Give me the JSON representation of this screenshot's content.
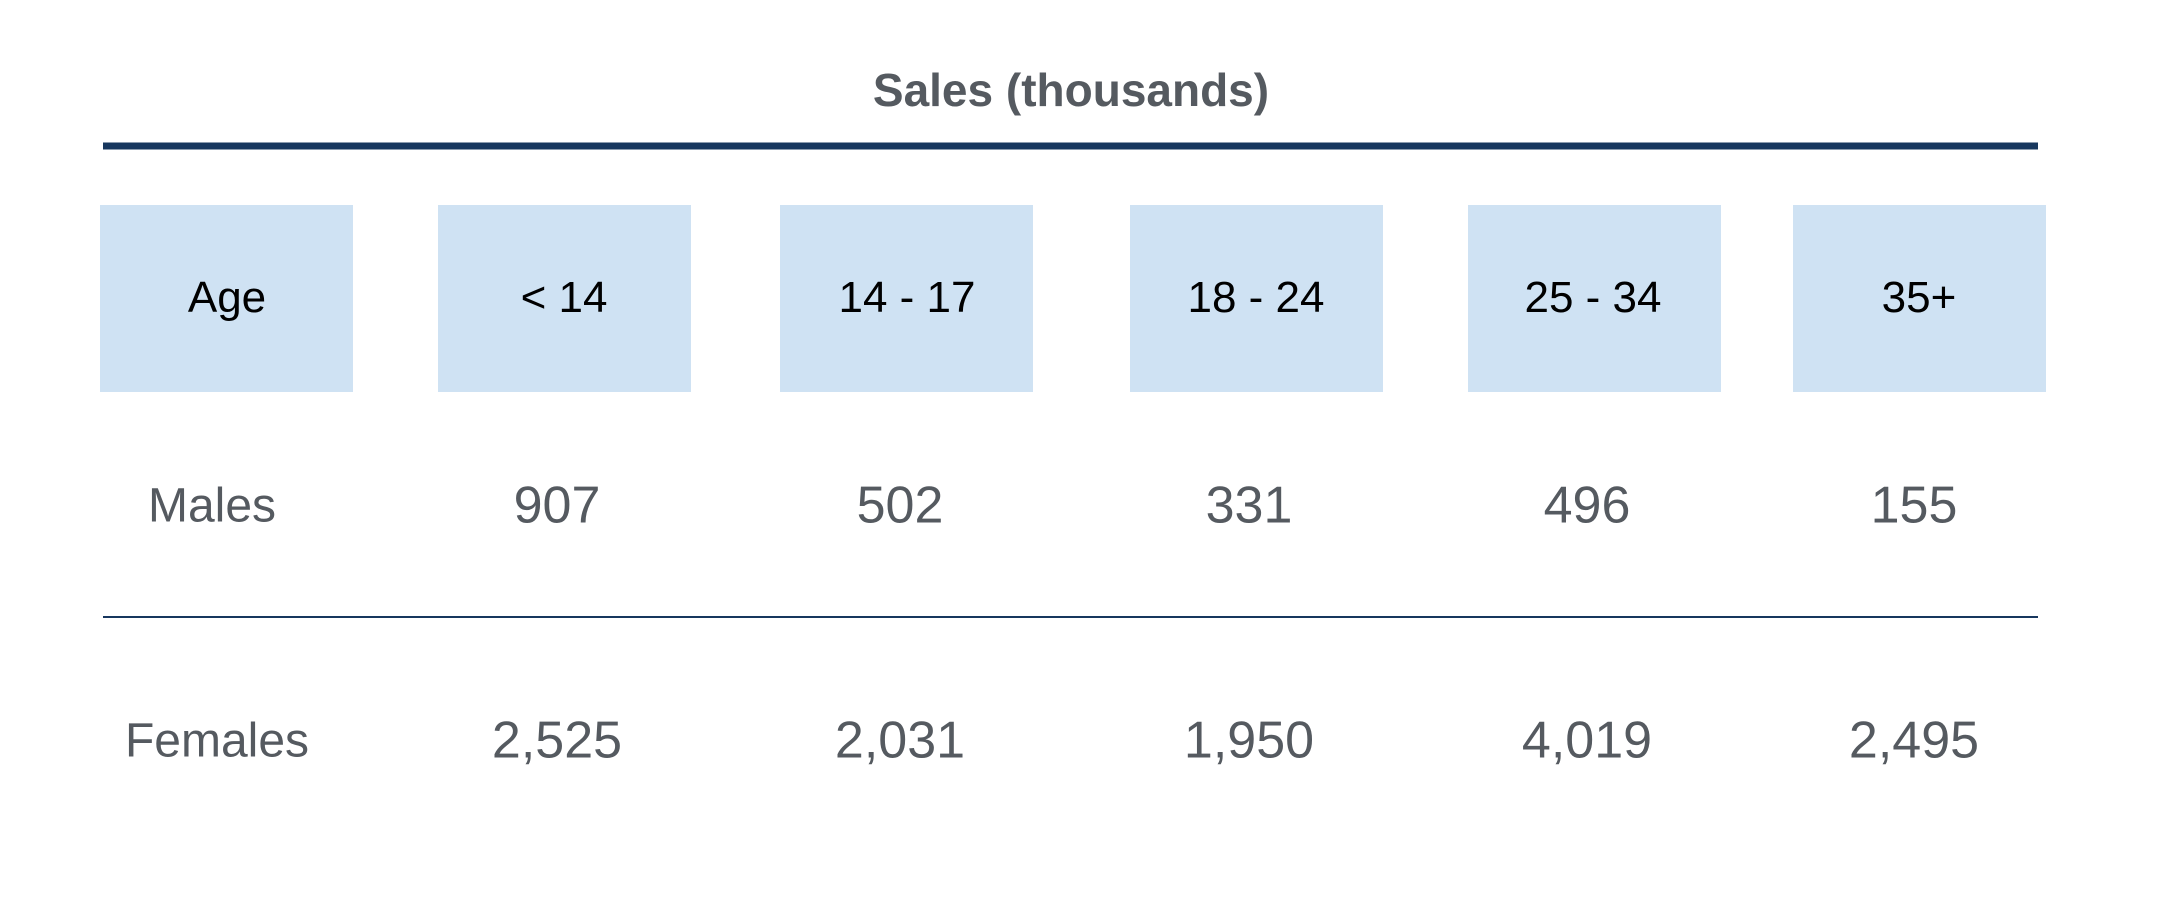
{
  "table": {
    "title": "Sales (thousands)",
    "header": [
      "Age",
      "< 14",
      "14 - 17",
      "18 - 24",
      "25 - 34",
      "35+"
    ],
    "rows": [
      [
        "Males",
        "907",
        "502",
        "331",
        "496",
        "155"
      ],
      [
        "Females",
        "2,525",
        "2,031",
        "1,950",
        "4,019",
        "2,495"
      ]
    ]
  }
}
